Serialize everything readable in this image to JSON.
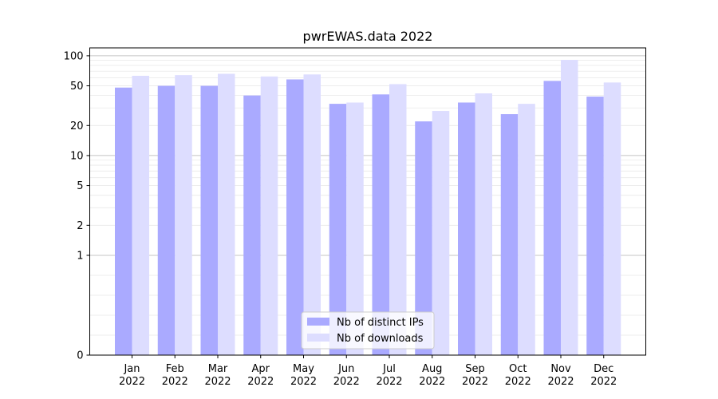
{
  "chart_data": {
    "type": "bar",
    "title": "pwrEWAS.data 2022",
    "xlabel": "",
    "ylabel": "",
    "y_scale": "symlog",
    "ylim": [
      0,
      120
    ],
    "yticks": [
      0,
      1,
      2,
      5,
      10,
      20,
      50,
      100
    ],
    "ytick_labels": [
      "0",
      "1",
      "2",
      "5",
      "10",
      "20",
      "50",
      "100"
    ],
    "categories": [
      "Jan\n2022",
      "Feb\n2022",
      "Mar\n2022",
      "Apr\n2022",
      "May\n2022",
      "Jun\n2022",
      "Jul\n2022",
      "Aug\n2022",
      "Sep\n2022",
      "Oct\n2022",
      "Nov\n2022",
      "Dec\n2022"
    ],
    "series": [
      {
        "name": "Nb of distinct IPs",
        "color": "#aaaaff",
        "values": [
          48,
          50,
          50,
          40,
          58,
          33,
          41,
          22,
          34,
          26,
          56,
          39
        ]
      },
      {
        "name": "Nb of downloads",
        "color": "#ddddff",
        "values": [
          63,
          64,
          66,
          62,
          65,
          34,
          52,
          28,
          42,
          33,
          91,
          54
        ]
      }
    ],
    "legend_position": "bottom-center",
    "grid": {
      "major": [
        1,
        10,
        100
      ],
      "minor": [
        0.2,
        0.4,
        0.6,
        0.8,
        2,
        3,
        4,
        5,
        6,
        7,
        8,
        9,
        20,
        30,
        40,
        50,
        60,
        70,
        80,
        90
      ]
    }
  }
}
